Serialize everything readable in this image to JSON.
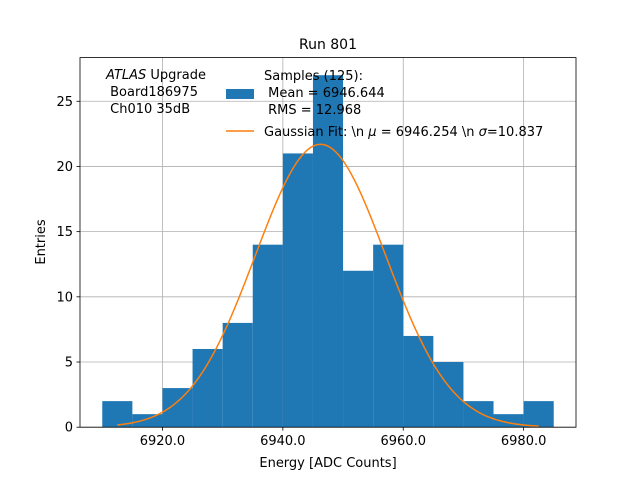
{
  "chart_data": {
    "type": "bar",
    "title": "Run 801",
    "xlabel": "Energy [ADC Counts]",
    "ylabel": "Entries",
    "xlim": [
      6906.3,
      6988.7
    ],
    "ylim": [
      0,
      28.35
    ],
    "grid": true,
    "bins": {
      "edges": [
        6910,
        6915,
        6920,
        6925,
        6930,
        6935,
        6940,
        6945,
        6950,
        6955,
        6960,
        6965,
        6970,
        6975,
        6980,
        6985
      ],
      "counts": [
        2,
        1,
        3,
        6,
        8,
        14,
        21,
        27,
        12,
        14,
        7,
        5,
        2,
        1,
        2
      ]
    },
    "x_ticks": [
      {
        "value": 6920,
        "label": "6920.0"
      },
      {
        "value": 6940,
        "label": "6940.0"
      },
      {
        "value": 6960,
        "label": "6960.0"
      },
      {
        "value": 6980,
        "label": "6980.0"
      }
    ],
    "y_ticks": [
      {
        "value": 0,
        "label": "0"
      },
      {
        "value": 5,
        "label": "5"
      },
      {
        "value": 10,
        "label": "10"
      },
      {
        "value": 15,
        "label": "15"
      },
      {
        "value": 20,
        "label": "20"
      },
      {
        "value": 25,
        "label": "25"
      }
    ],
    "fit": {
      "type": "gaussian",
      "mu": 6946.254,
      "sigma": 10.837,
      "amplitude": 21.7,
      "x_range": [
        6912.5,
        6982.5
      ]
    },
    "colors": {
      "hist": "#1f77b4",
      "fit": "#ff7f0e",
      "grid": "#b0b0b0"
    },
    "annotation": {
      "line1_italic": "ATLAS",
      "line1_rest": " Upgrade",
      "line2": " Board186975",
      "line3": " Ch010 35dB"
    },
    "legend": {
      "location": "top-right",
      "hist_label": [
        "Samples (125):",
        " Mean = 6946.644",
        " RMS = 12.968"
      ],
      "fit_label": {
        "pre": "Gaussian Fit: \\n ",
        "mu_sym": "μ",
        "mid": " = 6946.254 \\n ",
        "sigma_sym": "σ",
        "post": "=10.837"
      }
    }
  }
}
